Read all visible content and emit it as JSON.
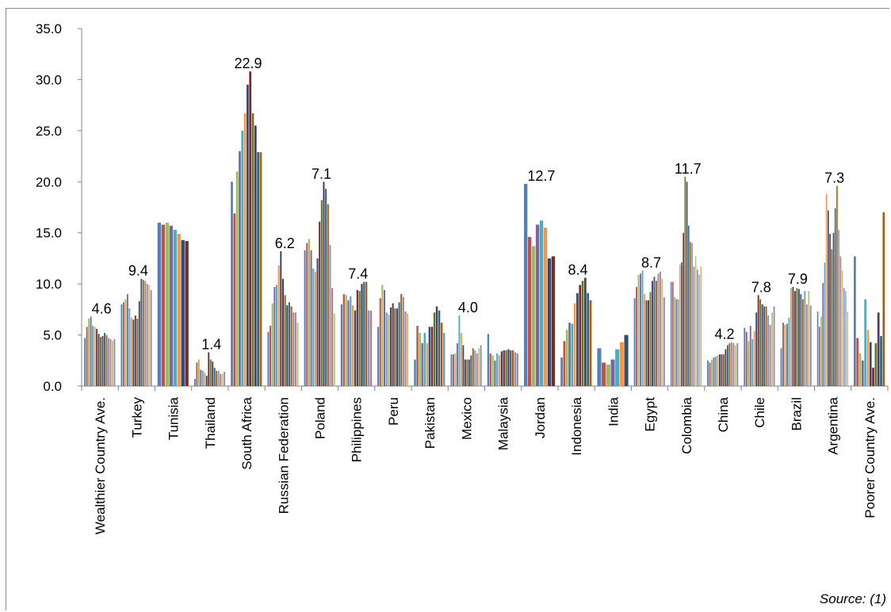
{
  "header": {
    "title_fragment": ""
  },
  "source": "Source:  (1)",
  "chart_data": {
    "type": "bar",
    "title": "",
    "xlabel": "",
    "ylabel": "",
    "ylim": [
      0,
      35
    ],
    "yticks": [
      "0.0",
      "5.0",
      "10.0",
      "15.0",
      "20.0",
      "25.0",
      "30.0",
      "35.0"
    ],
    "grid": false,
    "legend": "none",
    "palette": [
      "#4f81bd",
      "#c0504d",
      "#9bbb59",
      "#8064a2",
      "#4bacc6",
      "#f79646",
      "#2c4d75",
      "#772c2a",
      "#5f7530",
      "#4d3b62",
      "#276a7c",
      "#b65708",
      "#729aca",
      "#cd7371",
      "#afc97a",
      "#9d85b6",
      "#6fbdd1",
      "#f9ab6b",
      "#3a679c",
      "#9f3b38",
      "#7f9b40",
      "#664f83",
      "#358ea6",
      "#f3832f"
    ],
    "categories": [
      {
        "name": "Wealthier Country Ave.",
        "label": "4.6",
        "values": [
          4.7,
          5.8,
          6.6,
          6.8,
          5.9,
          5.8,
          5.6,
          5.1,
          4.8,
          4.9,
          5.2,
          5.0,
          4.7,
          4.6,
          4.4,
          4.6
        ]
      },
      {
        "name": "Turkey",
        "label": "9.4",
        "values": [
          8.0,
          8.2,
          8.5,
          9.0,
          7.6,
          6.7,
          6.5,
          6.9,
          6.6,
          8.3,
          10.5,
          10.4,
          10.3,
          10.0,
          9.9,
          9.4
        ]
      },
      {
        "name": "Tunisia",
        "label": "",
        "values": [
          16.0,
          15.8,
          16.0,
          15.7,
          15.3,
          14.9,
          14.3,
          14.2
        ]
      },
      {
        "name": "Thailand",
        "label": "1.4",
        "values": [
          0.7,
          2.3,
          2.6,
          1.6,
          1.5,
          1.3,
          1.0,
          3.3,
          2.6,
          2.4,
          1.8,
          1.5,
          1.5,
          1.2,
          1.2,
          1.4
        ]
      },
      {
        "name": "South Africa",
        "label": "22.9",
        "values": [
          20.0,
          16.9,
          21.0,
          23.0,
          25.0,
          26.7,
          29.5,
          30.8,
          26.7,
          25.5,
          22.9,
          22.9
        ]
      },
      {
        "name": "Russian Federation",
        "label": "6.2",
        "values": [
          5.3,
          5.9,
          8.1,
          9.7,
          9.9,
          11.8,
          13.2,
          10.5,
          8.9,
          7.9,
          8.2,
          7.8,
          7.2,
          7.2,
          6.2
        ]
      },
      {
        "name": "Poland",
        "label": "7.1",
        "values": [
          13.3,
          14.0,
          14.4,
          13.3,
          11.5,
          11.2,
          12.5,
          16.1,
          18.2,
          20.0,
          19.3,
          17.8,
          13.8,
          9.6,
          7.1
        ]
      },
      {
        "name": "Philippines",
        "label": "7.4",
        "values": [
          8.0,
          9.0,
          8.9,
          8.4,
          8.8,
          7.9,
          7.4,
          9.4,
          9.3,
          10.0,
          10.2,
          10.2,
          7.4,
          7.4
        ]
      },
      {
        "name": "Peru",
        "label": "",
        "values": [
          5.8,
          8.6,
          9.9,
          9.4,
          7.2,
          7.0,
          7.7,
          8.1,
          7.6,
          7.6,
          8.2,
          9.0,
          8.7,
          7.3,
          7.1
        ]
      },
      {
        "name": "Pakistan",
        "label": "",
        "values": [
          2.6,
          5.9,
          5.2,
          4.2,
          5.2,
          4.2,
          5.8,
          5.8,
          7.2,
          7.8,
          7.4,
          6.2,
          5.2
        ]
      },
      {
        "name": "Mexico",
        "label": "4.0",
        "values": [
          3.1,
          3.1,
          3.2,
          4.2,
          6.9,
          5.2,
          4.0,
          2.6,
          2.6,
          2.6,
          3.0,
          3.7,
          3.5,
          3.2,
          3.7,
          4.0
        ]
      },
      {
        "name": "Malaysia",
        "label": "",
        "values": [
          5.1,
          3.2,
          3.0,
          2.5,
          3.2,
          3.0,
          3.4,
          3.5,
          3.5,
          3.6,
          3.5,
          3.5,
          3.3,
          3.2
        ]
      },
      {
        "name": "Jordan",
        "label": "12.7",
        "values": [
          19.8,
          14.6,
          13.7,
          15.8,
          16.2,
          15.5,
          12.5,
          12.7
        ]
      },
      {
        "name": "Indonesia",
        "label": "8.4",
        "values": [
          2.8,
          4.4,
          5.5,
          6.2,
          6.1,
          8.1,
          9.1,
          9.9,
          10.3,
          10.6,
          9.1,
          8.4
        ]
      },
      {
        "name": "India",
        "label": "",
        "values": [
          3.7,
          2.3,
          2.1,
          2.6,
          3.6,
          4.3,
          5.0
        ]
      },
      {
        "name": "Egypt",
        "label": "8.7",
        "values": [
          8.6,
          9.7,
          10.9,
          11.0,
          11.3,
          9.0,
          8.4,
          8.4,
          9.2,
          10.3,
          10.7,
          10.3,
          11.0,
          11.2,
          10.5,
          8.7
        ]
      },
      {
        "name": "Colombia",
        "label": "11.7",
        "values": [
          10.2,
          10.2,
          8.7,
          8.5,
          8.5,
          11.9,
          12.1,
          15.0,
          20.5,
          20.0,
          15.7,
          14.1,
          14.0,
          11.7,
          12.7,
          11.4,
          10.9,
          11.7
        ]
      },
      {
        "name": "China",
        "label": "4.2",
        "values": [
          2.5,
          2.3,
          2.6,
          2.8,
          2.9,
          3.0,
          3.1,
          3.1,
          3.1,
          3.6,
          4.0,
          4.2,
          4.3,
          4.2,
          4.0,
          4.2
        ]
      },
      {
        "name": "Chile",
        "label": "7.8",
        "values": [
          5.7,
          5.3,
          4.4,
          5.9,
          4.6,
          5.4,
          7.2,
          8.9,
          8.5,
          8.0,
          7.8,
          7.8,
          6.9,
          6.0,
          7.2,
          7.8
        ]
      },
      {
        "name": "Brazil",
        "label": "7.9",
        "values": [
          3.7,
          6.2,
          6.0,
          6.1,
          6.7,
          9.6,
          9.7,
          9.3,
          9.6,
          9.5,
          9.0,
          8.5,
          9.3,
          8.0,
          9.3,
          7.9
        ]
      },
      {
        "name": "Argentina",
        "label": "7.3",
        "values": [
          7.3,
          5.8,
          6.8,
          10.1,
          12.1,
          18.8,
          17.2,
          14.9,
          13.4,
          15.0,
          17.4,
          19.6,
          15.3,
          12.7,
          11.3,
          9.6,
          9.3,
          7.3
        ]
      },
      {
        "name": "Poorer Country Ave.",
        "label": "",
        "values": [
          12.7,
          4.7,
          3.2,
          2.5,
          8.5,
          5.5,
          4.3,
          1.8,
          4.2,
          7.2,
          4.9,
          17.0
        ]
      }
    ]
  }
}
